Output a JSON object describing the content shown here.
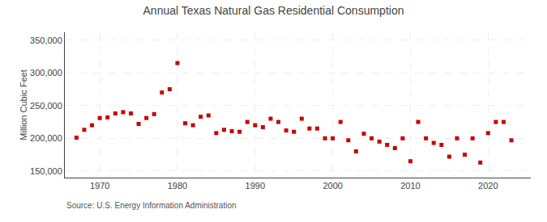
{
  "chart_data": {
    "type": "scatter",
    "title": "Annual Texas Natural Gas Residential Consumption",
    "ylabel": "Million Cubic Feet",
    "source": "Source: U.S. Energy Information Administration",
    "color": "#cc0000",
    "marker": "square",
    "grid": true,
    "x": [
      1967,
      1968,
      1969,
      1970,
      1971,
      1972,
      1973,
      1974,
      1975,
      1976,
      1977,
      1978,
      1979,
      1980,
      1981,
      1982,
      1983,
      1984,
      1985,
      1986,
      1987,
      1988,
      1989,
      1990,
      1991,
      1992,
      1993,
      1994,
      1995,
      1996,
      1997,
      1998,
      1999,
      2000,
      2001,
      2002,
      2003,
      2004,
      2005,
      2006,
      2007,
      2008,
      2009,
      2010,
      2011,
      2012,
      2013,
      2014,
      2015,
      2016,
      2017,
      2018,
      2019,
      2020,
      2021,
      2022,
      2023
    ],
    "values": [
      201000,
      213000,
      220000,
      231000,
      232000,
      238000,
      240000,
      238000,
      222000,
      231000,
      237000,
      270000,
      275000,
      315000,
      223000,
      220000,
      233000,
      235000,
      208000,
      213000,
      211000,
      210000,
      225000,
      220000,
      217000,
      230000,
      225000,
      212000,
      210000,
      230000,
      215000,
      215000,
      200000,
      200000,
      225000,
      197000,
      180000,
      207000,
      200000,
      195000,
      190000,
      185000,
      200000,
      165000,
      225000,
      200000,
      193000,
      190000,
      172000,
      200000,
      175000,
      200000,
      163000,
      208000,
      225000,
      225000,
      197000
    ],
    "xlim": [
      1965.5,
      2025.5
    ],
    "xticks": [
      1970,
      1980,
      1990,
      2000,
      2010,
      2020
    ],
    "ylim": [
      140000,
      362000
    ],
    "yticks": [
      {
        "value": 150000,
        "label": "150,000"
      },
      {
        "value": 200000,
        "label": "200,000"
      },
      {
        "value": 250000,
        "label": "250,000"
      },
      {
        "value": 300000,
        "label": "300,000"
      },
      {
        "value": 350000,
        "label": "350,000"
      }
    ]
  }
}
